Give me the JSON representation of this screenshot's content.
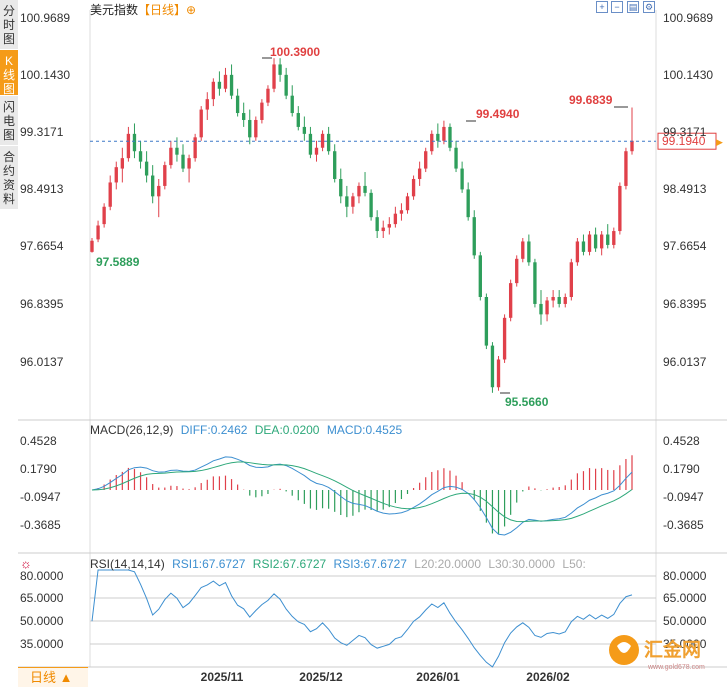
{
  "tabs": [
    "分时图",
    "K线图",
    "闪电图",
    "合约资料"
  ],
  "header": {
    "title": "美元指数",
    "period": "【日线】",
    "add_icon": "⊕"
  },
  "toolbar_icons": [
    "zoom-in-icon",
    "zoom-out-icon",
    "chart-type-icon",
    "settings-icon"
  ],
  "price_axis": {
    "ticks": [
      "100.9689",
      "100.1430",
      "99.3171",
      "98.4913",
      "97.6654",
      "96.8395",
      "96.0137"
    ]
  },
  "current_price": "99.1940",
  "annotations": {
    "high1": "100.3900",
    "high2": "99.4940",
    "high3": "99.6839",
    "low1": "97.5889",
    "low2": "95.5660"
  },
  "macd": {
    "label": "MACD(26,12,9)",
    "diff": "DIFF:0.2462",
    "dea": "DEA:0.0200",
    "macd": "MACD:0.4525",
    "ticks": [
      "0.4528",
      "0.1790",
      "-0.0947",
      "-0.3685"
    ]
  },
  "rsi": {
    "label": "RSI(14,14,14)",
    "rsi1": "RSI1:67.6727",
    "rsi2": "RSI2:67.6727",
    "rsi3": "RSI3:67.6727",
    "l20": "L20:20.0000",
    "l30": "L30:30.0000",
    "l50": "L50:",
    "ticks": [
      "80.0000",
      "65.0000",
      "50.0000",
      "35.0000"
    ]
  },
  "x_axis": [
    "2025/11",
    "2025/12",
    "2026/01",
    "2026/02"
  ],
  "bottom_tab": "日线 ▲",
  "watermark": {
    "brand": "汇金网",
    "url": "www.gold678.com"
  },
  "colors": {
    "up": "#e0404a",
    "down": "#2e9e5b",
    "tab_active": "#f59b18",
    "current_line": "#3d79c7",
    "price_label": "#e04040"
  }
}
